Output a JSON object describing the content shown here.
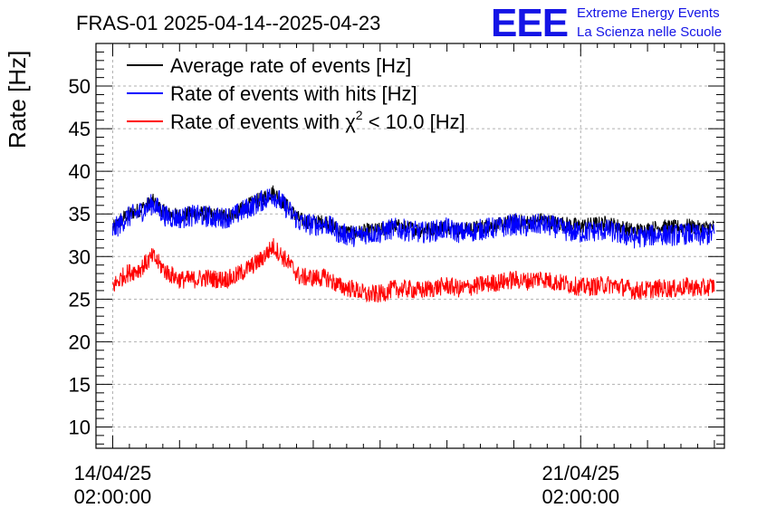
{
  "chart_data": {
    "type": "line",
    "title": "FRAS-01 2025-04-14--2025-04-23",
    "ylabel": "Rate [Hz]",
    "xlabel": "",
    "ylim": [
      7.5,
      55
    ],
    "y_ticks": [
      10,
      15,
      20,
      25,
      30,
      35,
      40,
      45,
      50
    ],
    "x_range_days": [
      -0.25,
      9.15
    ],
    "x_ticks": [
      {
        "day": 0,
        "line1": "14/04/25",
        "line2": "02:00:00"
      },
      {
        "day": 7,
        "line1": "21/04/25",
        "line2": "02:00:00"
      }
    ],
    "grid": true,
    "legend_position": "top-left",
    "x_days": [
      0.0,
      0.2,
      0.4,
      0.6,
      0.8,
      1.0,
      1.2,
      1.4,
      1.6,
      1.8,
      2.0,
      2.2,
      2.4,
      2.6,
      2.8,
      3.0,
      3.2,
      3.4,
      3.6,
      3.8,
      4.0,
      4.2,
      4.4,
      4.6,
      4.8,
      5.0,
      5.2,
      5.4,
      5.6,
      5.8,
      6.0,
      6.2,
      6.4,
      6.6,
      6.8,
      7.0,
      7.2,
      7.4,
      7.6,
      7.8,
      8.0,
      8.2,
      8.4,
      8.6,
      8.8,
      9.0
    ],
    "series": [
      {
        "name": "Average rate of events [Hz]",
        "color": "#000000",
        "noise": 0.9,
        "values": [
          33.3,
          34.8,
          35.5,
          36.5,
          35.0,
          34.8,
          35.1,
          35.0,
          34.8,
          35.0,
          35.9,
          36.7,
          37.6,
          36.0,
          34.3,
          34.0,
          34.1,
          33.0,
          32.7,
          33.0,
          33.1,
          33.6,
          33.4,
          33.1,
          33.3,
          33.6,
          33.1,
          33.3,
          33.6,
          33.7,
          34.1,
          34.0,
          34.3,
          34.0,
          33.8,
          33.6,
          33.8,
          33.9,
          33.5,
          33.0,
          33.2,
          33.5,
          33.4,
          33.6,
          33.3,
          33.5
        ]
      },
      {
        "name": "Rate of events with hits [Hz]",
        "color": "#0000ff",
        "noise": 1.3,
        "values": [
          33.0,
          34.5,
          35.2,
          36.2,
          34.7,
          34.5,
          34.8,
          34.7,
          34.5,
          34.7,
          35.6,
          36.4,
          37.3,
          35.7,
          34.0,
          33.7,
          33.8,
          32.7,
          32.4,
          32.7,
          32.8,
          33.3,
          33.1,
          32.8,
          33.0,
          33.3,
          32.8,
          33.0,
          33.3,
          33.4,
          33.8,
          33.5,
          33.8,
          33.5,
          33.0,
          32.8,
          33.0,
          33.1,
          32.6,
          32.2,
          32.4,
          32.6,
          32.5,
          32.7,
          32.4,
          32.7
        ]
      },
      {
        "name": "Rate of events with χ² < 10.0 [Hz]",
        "color": "#ff0000",
        "noise": 1.1,
        "values": [
          26.5,
          28.0,
          28.5,
          30.0,
          28.2,
          27.3,
          27.3,
          27.5,
          27.3,
          27.5,
          28.5,
          29.5,
          31.2,
          29.5,
          27.6,
          27.5,
          27.5,
          26.5,
          26.2,
          25.5,
          25.6,
          26.2,
          26.2,
          26.0,
          26.3,
          26.6,
          26.2,
          26.5,
          26.8,
          27.0,
          27.3,
          27.1,
          27.5,
          27.0,
          26.8,
          26.4,
          26.5,
          26.7,
          26.5,
          26.0,
          26.1,
          26.3,
          26.2,
          26.5,
          26.2,
          26.6
        ]
      }
    ]
  },
  "legend": {
    "avg_label": "Average rate of events [Hz]",
    "hits_label": "Rate of events with hits [Hz]",
    "chi_prefix": "Rate of events with ",
    "chi_symbol": "χ",
    "chi_exponent": "2",
    "chi_suffix": " < 10.0 [Hz]"
  },
  "logo": {
    "mark": "EEE",
    "line1": "Extreme Energy Events",
    "line2": "La Scienza nelle Scuole",
    "color": "#1414e6"
  }
}
